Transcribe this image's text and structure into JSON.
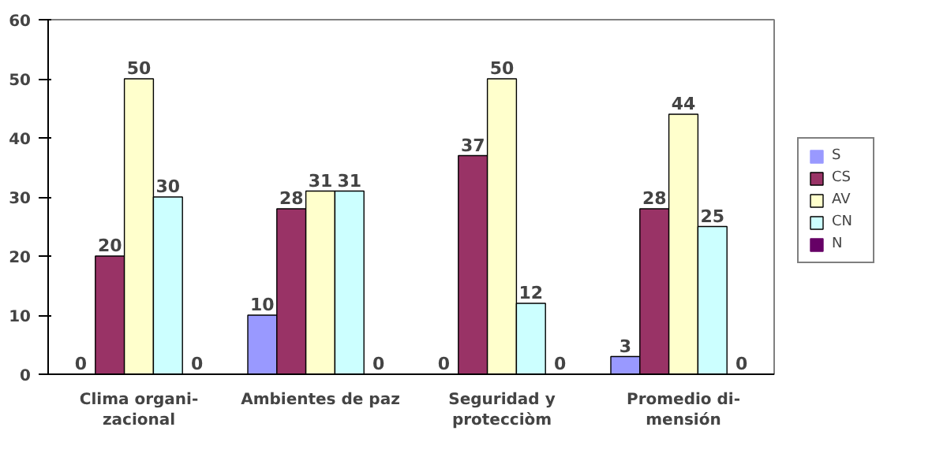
{
  "chart_data": {
    "type": "bar",
    "categories": [
      "Clima organi-\nzacional",
      "Ambientes de paz",
      "Seguridad y\nprotecciòm",
      "Promedio di-\nmensión"
    ],
    "series": [
      {
        "name": "S",
        "color": "#9999ff",
        "values": [
          0,
          10,
          0,
          3
        ]
      },
      {
        "name": "CS",
        "color": "#993366",
        "values": [
          20,
          28,
          37,
          28
        ]
      },
      {
        "name": "AV",
        "color": "#ffffcc",
        "values": [
          50,
          31,
          50,
          44
        ]
      },
      {
        "name": "CN",
        "color": "#ccffff",
        "values": [
          30,
          31,
          12,
          25
        ]
      },
      {
        "name": "N",
        "color": "#660066",
        "values": [
          0,
          0,
          0,
          0
        ]
      }
    ],
    "ylim": [
      0,
      60
    ],
    "yticks": [
      0,
      10,
      20,
      30,
      40,
      50,
      60
    ],
    "grid": false,
    "legend": "right",
    "data_labels": true
  }
}
